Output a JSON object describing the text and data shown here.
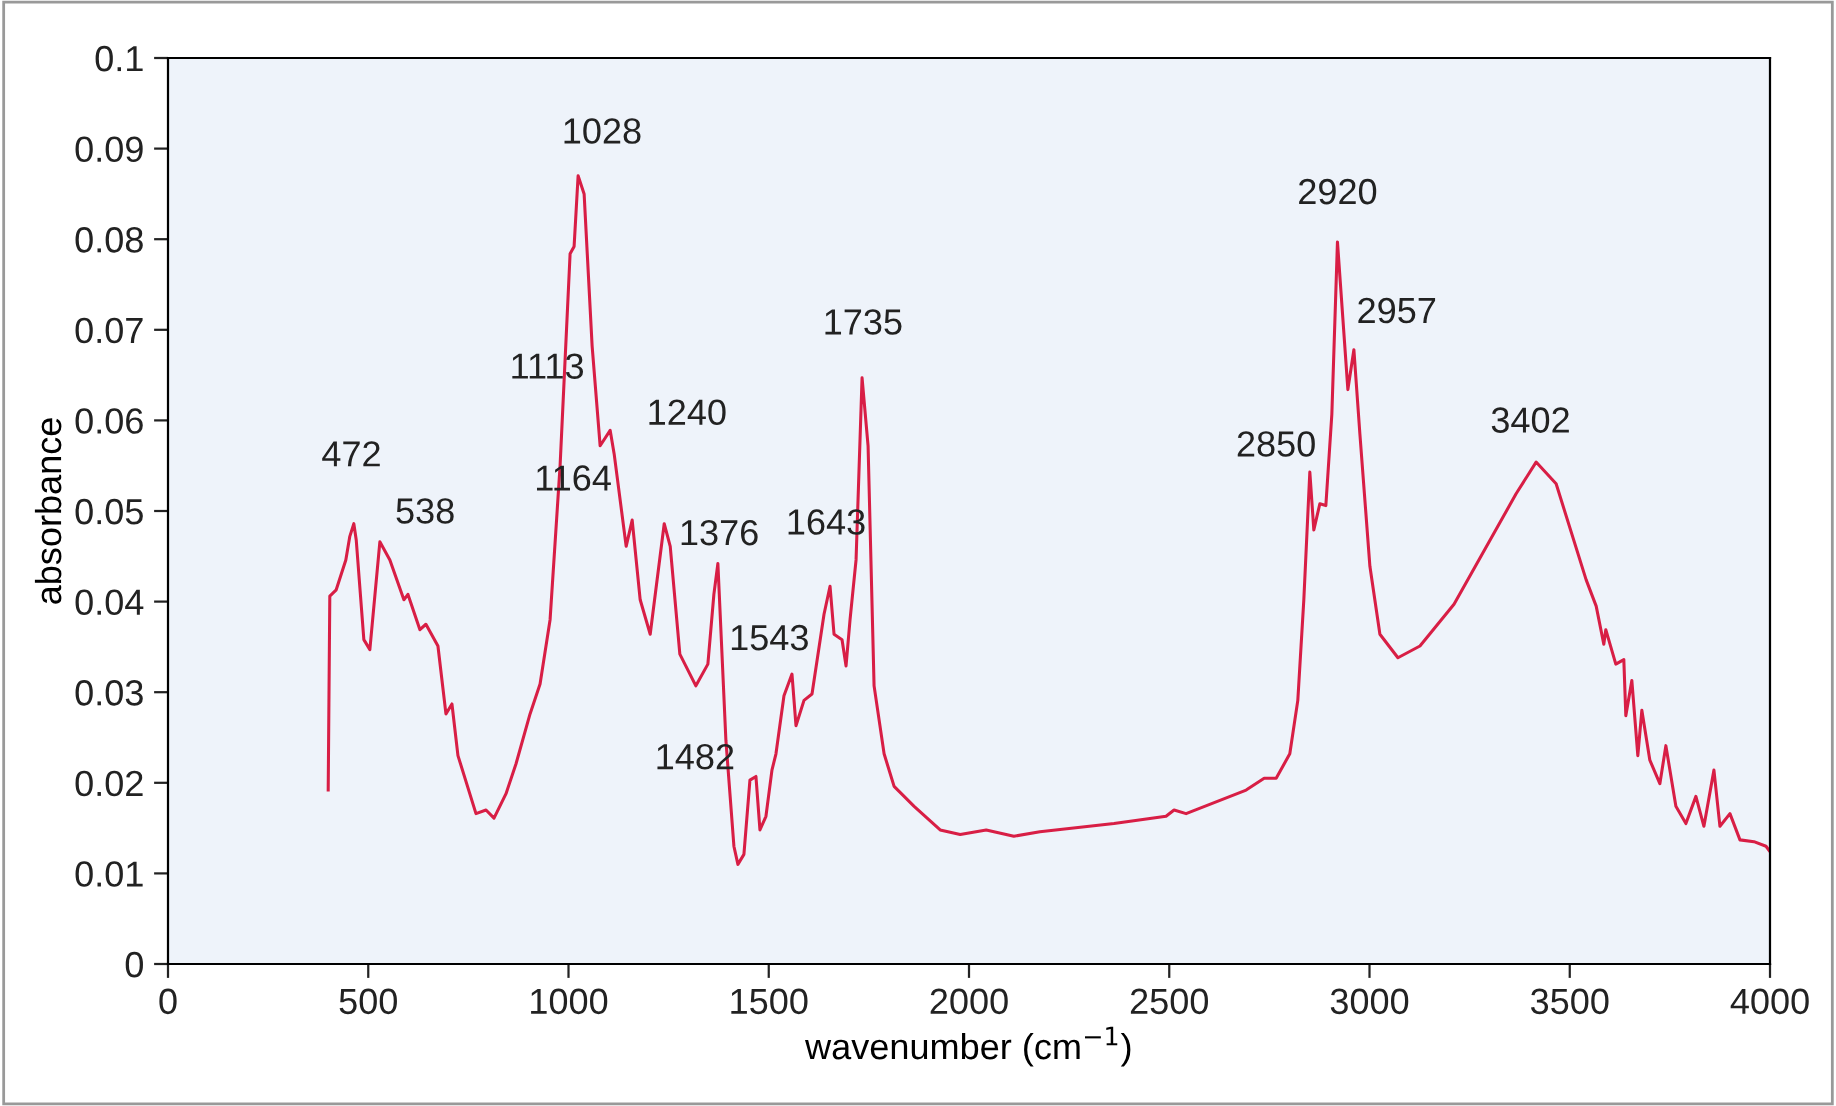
{
  "chart_data": {
    "type": "line",
    "xlabel": "wavenumber (cm$^{−1}$)",
    "ylabel": "absorbance",
    "xlim": [
      0,
      4000
    ],
    "xticks": [
      0,
      500,
      1000,
      1500,
      2000,
      2500,
      3000,
      3500,
      4000
    ],
    "ylim": [
      0,
      0.1
    ],
    "yticks": [
      0,
      0.01,
      0.02,
      0.03,
      0.04,
      0.05,
      0.06,
      0.07,
      0.08,
      0.09,
      0.1
    ],
    "grid": false,
    "legend": false,
    "marker": "none",
    "line_style": "solid",
    "series": [
      {
        "color": "#d81e45",
        "x": [
          400,
          404,
          420,
          444,
          454,
          464,
          470,
          489,
          504,
          529,
          554,
          589,
          599,
          629,
          644,
          674,
          694,
          709,
          724,
          769,
          794,
          814,
          844,
          869,
          904,
          929,
          954,
          979,
          1004,
          1014,
          1024,
          1039,
          1059,
          1079,
          1104,
          1114,
          1144,
          1159,
          1179,
          1204,
          1239,
          1254,
          1278,
          1318,
          1348,
          1363,
          1373,
          1393,
          1413,
          1423,
          1438,
          1453,
          1468,
          1478,
          1493,
          1508,
          1518,
          1538,
          1558,
          1568,
          1588,
          1608,
          1638,
          1653,
          1663,
          1683,
          1693,
          1703,
          1718,
          1733,
          1748,
          1763,
          1788,
          1813,
          1863,
          1928,
          1978,
          2043,
          2112,
          2177,
          2362,
          2492,
          2512,
          2542,
          2692,
          2737,
          2767,
          2801,
          2821,
          2836,
          2851,
          2861,
          2876,
          2891,
          2906,
          2920,
          2946,
          2961,
          2976,
          3001,
          3026,
          3071,
          3126,
          3211,
          3366,
          3416,
          3466,
          3541,
          3566,
          3585,
          3590,
          3615,
          3635,
          3640,
          3655,
          3670,
          3680,
          3700,
          3725,
          3740,
          3765,
          3790,
          3815,
          3835,
          3860,
          3875,
          3900,
          3925,
          3960,
          3990,
          4000
        ],
        "values": [
          0.0192,
          0.0406,
          0.0413,
          0.0446,
          0.0472,
          0.0486,
          0.0468,
          0.0358,
          0.0347,
          0.0466,
          0.0446,
          0.0402,
          0.0408,
          0.0369,
          0.0375,
          0.0351,
          0.0276,
          0.0287,
          0.023,
          0.0166,
          0.017,
          0.0161,
          0.0188,
          0.0221,
          0.0276,
          0.0309,
          0.038,
          0.055,
          0.0784,
          0.0792,
          0.087,
          0.085,
          0.0682,
          0.0572,
          0.0589,
          0.0563,
          0.0461,
          0.049,
          0.0402,
          0.0364,
          0.0486,
          0.0461,
          0.0342,
          0.0307,
          0.0331,
          0.0408,
          0.0442,
          0.0247,
          0.013,
          0.011,
          0.0121,
          0.0203,
          0.0207,
          0.0148,
          0.0163,
          0.0214,
          0.0232,
          0.0296,
          0.032,
          0.0263,
          0.0291,
          0.0298,
          0.0386,
          0.0417,
          0.0364,
          0.0358,
          0.0329,
          0.038,
          0.0446,
          0.0647,
          0.0572,
          0.0307,
          0.0232,
          0.0196,
          0.0174,
          0.0148,
          0.0143,
          0.0148,
          0.0141,
          0.0146,
          0.0155,
          0.0163,
          0.017,
          0.0166,
          0.0192,
          0.0205,
          0.0205,
          0.0232,
          0.0291,
          0.0402,
          0.0543,
          0.0479,
          0.0508,
          0.0506,
          0.0607,
          0.0797,
          0.0634,
          0.0678,
          0.0585,
          0.0439,
          0.0364,
          0.0338,
          0.0351,
          0.0397,
          0.0519,
          0.0554,
          0.053,
          0.0424,
          0.0395,
          0.0353,
          0.0369,
          0.0331,
          0.0336,
          0.0274,
          0.0313,
          0.023,
          0.028,
          0.0225,
          0.0199,
          0.0241,
          0.0174,
          0.0155,
          0.0185,
          0.0152,
          0.0214,
          0.0152,
          0.0166,
          0.0137,
          0.0135,
          0.013,
          0.0124
        ]
      }
    ],
    "annotations": [
      {
        "text": "472",
        "x": 472,
        "y": 0.0486
      },
      {
        "text": "538",
        "x": 538,
        "y": 0.0466
      },
      {
        "text": "1028",
        "x": 1028,
        "y": 0.087
      },
      {
        "text": "1113",
        "x": 1113,
        "y": 0.0589
      },
      {
        "text": "1240",
        "x": 1240,
        "y": 0.0486
      },
      {
        "text": "1164",
        "x": 1164,
        "y": 0.049
      },
      {
        "text": "1376",
        "x": 1376,
        "y": 0.0442
      },
      {
        "text": "1643",
        "x": 1643,
        "y": 0.0417
      },
      {
        "text": "1543",
        "x": 1543,
        "y": 0.032
      },
      {
        "text": "1482",
        "x": 1482,
        "y": 0.0207
      },
      {
        "text": "1735",
        "x": 1735,
        "y": 0.0647
      },
      {
        "text": "2850",
        "x": 2850,
        "y": 0.0543
      },
      {
        "text": "2920",
        "x": 2920,
        "y": 0.0797
      },
      {
        "text": "2957",
        "x": 2957,
        "y": 0.0678
      },
      {
        "text": "3402",
        "x": 3402,
        "y": 0.0554
      }
    ]
  }
}
